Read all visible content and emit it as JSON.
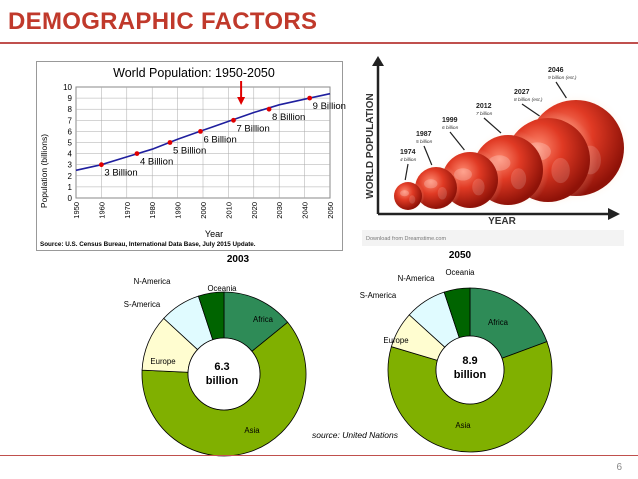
{
  "slide": {
    "title": "DEMOGRAPHIC FACTORS",
    "page_number": "6",
    "title_color": "#c0392b"
  },
  "line_chart": {
    "chart_data": {
      "type": "line",
      "title": "World Population: 1950-2050",
      "xlabel": "Year",
      "ylabel": "Population (billions)",
      "x_ticks": [
        "1950",
        "1960",
        "1970",
        "1980",
        "1990",
        "2000",
        "2010",
        "2020",
        "2030",
        "2040",
        "2050"
      ],
      "y_ticks": [
        0,
        1,
        2,
        3,
        4,
        5,
        6,
        7,
        8,
        9,
        10
      ],
      "ylim": [
        0,
        10
      ],
      "xlim": [
        1950,
        2050
      ],
      "series": [
        {
          "x": [
            1950,
            1960,
            1970,
            1980,
            1990,
            2000,
            2010,
            2020,
            2030,
            2040,
            2050
          ],
          "y": [
            2.5,
            3.0,
            3.7,
            4.4,
            5.3,
            6.1,
            6.9,
            7.7,
            8.4,
            8.9,
            9.4
          ]
        }
      ],
      "milestones": [
        {
          "x": 1960,
          "y": 3,
          "label": "3 Billion"
        },
        {
          "x": 1974,
          "y": 4,
          "label": "4 Billion"
        },
        {
          "x": 1987,
          "y": 5,
          "label": "5 Billion"
        },
        {
          "x": 1999,
          "y": 6,
          "label": "6 Billion"
        },
        {
          "x": 2012,
          "y": 7,
          "label": "7 Billion"
        },
        {
          "x": 2026,
          "y": 8,
          "label": "8 Billion"
        },
        {
          "x": 2042,
          "y": 9,
          "label": "9 Billion"
        }
      ],
      "arrow_x": 2015,
      "grid": true,
      "line_color": "#1f1f9e",
      "marker_color": "#e00000",
      "arrow_color": "#e00000"
    },
    "source": "Source: U.S. Census Bureau, International Data Base, July 2015 Update."
  },
  "globe_graphic": {
    "y_axis_label": "WORLD POPULATION",
    "x_axis_label": "YEAR",
    "globes": [
      {
        "year": "1974",
        "label": "4 billion"
      },
      {
        "year": "1987",
        "label": "5 billion"
      },
      {
        "year": "1999",
        "label": "6 billion"
      },
      {
        "year": "2012",
        "label": "7 billion"
      },
      {
        "year": "2027",
        "label": "8 billion (est.)"
      },
      {
        "year": "2046",
        "label": "9 billion (est.)"
      }
    ],
    "watermark": "Download from Dreamstime.com",
    "globe_color": "#d42a1a"
  },
  "donut_charts": {
    "chart_data": [
      {
        "type": "pie",
        "title": "2003",
        "center_value": "6.3",
        "center_unit": "billion",
        "slices": [
          {
            "name": "Africa",
            "value": 14,
            "color": "#2e8b57"
          },
          {
            "name": "Asia",
            "value": 61,
            "color": "#80b000"
          },
          {
            "name": "Europe",
            "value": 11,
            "color": "#fffdd0"
          },
          {
            "name": "S-America",
            "value": 8,
            "color": "#e0fbff"
          },
          {
            "name": "N-America",
            "value": 0,
            "color": "#ffffff"
          },
          {
            "name": "Oceania",
            "value": 5,
            "color": "#006400"
          }
        ]
      },
      {
        "type": "pie",
        "title": "2050",
        "center_value": "8.9",
        "center_unit": "billion",
        "slices": [
          {
            "name": "Africa",
            "value": 19,
            "color": "#2e8b57"
          },
          {
            "name": "Asia",
            "value": 59,
            "color": "#80b000"
          },
          {
            "name": "Europe",
            "value": 7,
            "color": "#fffdd0"
          },
          {
            "name": "S-America",
            "value": 8,
            "color": "#e0fbff"
          },
          {
            "name": "N-America",
            "value": 0,
            "color": "#ffffff"
          },
          {
            "name": "Oceania",
            "value": 5,
            "color": "#006400"
          }
        ]
      }
    ],
    "source": "source: United Nations"
  }
}
